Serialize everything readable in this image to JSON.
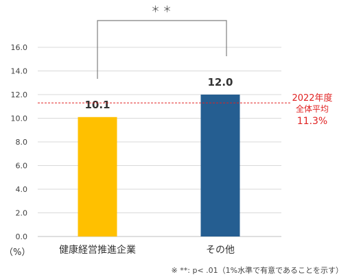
{
  "chart_data": {
    "type": "bar",
    "categories": [
      "健康経営推進企業",
      "その他"
    ],
    "values": [
      10.1,
      12.0
    ],
    "data_labels": [
      "10.1",
      "12.0"
    ],
    "colors": [
      "#FFC000",
      "#255E91"
    ],
    "ylim": [
      0,
      16
    ],
    "yticks": [
      "0.0",
      "2.0",
      "4.0",
      "6.0",
      "8.0",
      "10.0",
      "12.0",
      "14.0",
      "16.0"
    ],
    "ylabel": "（%）",
    "grid": true,
    "reference_line": {
      "value": 11.3,
      "label_line1": "2022年度",
      "label_line2": "全体平均",
      "label_value": "11.3%",
      "color": "#E02020"
    },
    "significance": "＊＊",
    "footnote": "※ **: p< .01（1%水準で有意であることを示す）"
  }
}
